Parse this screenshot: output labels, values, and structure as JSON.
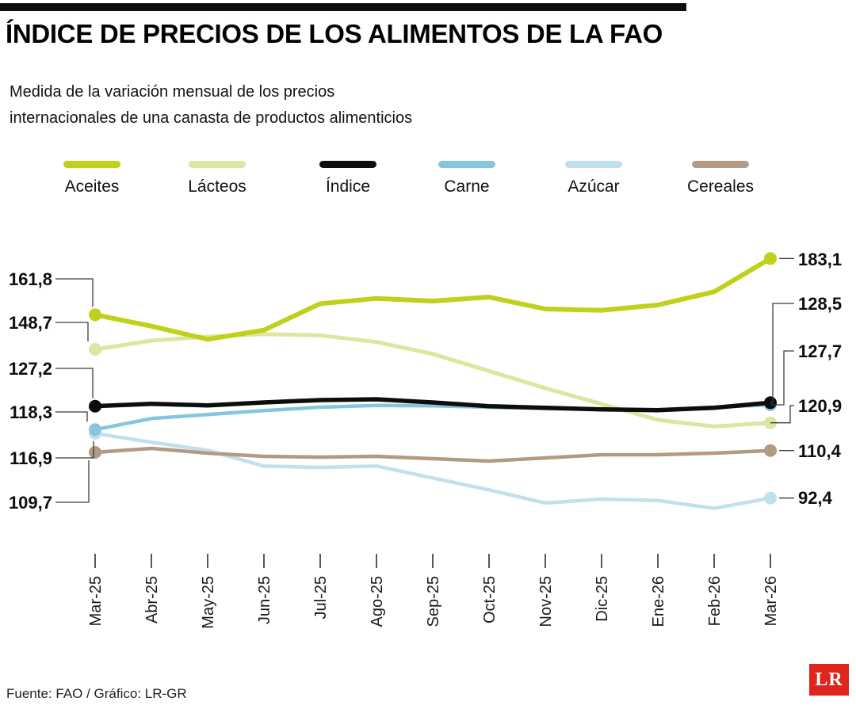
{
  "header": {
    "title": "ÍNDICE DE PRECIOS DE LOS ALIMENTOS DE LA FAO",
    "subtitle_line1": "Medida de la variación mensual de los precios",
    "subtitle_line2": "internacionales de una canasta de productos alimenticios"
  },
  "footer": {
    "source": "Fuente: FAO / Gráfico: LR-GR",
    "logo": "LR"
  },
  "colors": {
    "accent_bar": "#0d0d0d",
    "logo_red": "#e0251c"
  },
  "chart_data": {
    "type": "line",
    "title": "ÍNDICE DE PRECIOS DE LOS ALIMENTOS DE LA FAO",
    "xlabel": "",
    "ylabel": "",
    "ylim": [
      85,
      190
    ],
    "grid": false,
    "legend_position": "top",
    "categories": [
      "Mar-25",
      "Abr-25",
      "May-25",
      "Jun-25",
      "Jul-25",
      "Ago-25",
      "Sep-25",
      "Oct-25",
      "Nov-25",
      "Dic-25",
      "Ene-26",
      "Feb-26",
      "Mar-26"
    ],
    "series": [
      {
        "name": "Aceites",
        "color": "#bfd11a",
        "start_label": "161,8",
        "end_label": "183,1",
        "values": [
          161.8,
          157.5,
          152.5,
          156.0,
          166.0,
          168.0,
          167.0,
          168.5,
          164.0,
          163.5,
          165.5,
          170.5,
          183.1
        ]
      },
      {
        "name": "Lácteos",
        "color": "#dde5a0",
        "start_label": "148,7",
        "end_label": "120,9",
        "values": [
          148.7,
          152.0,
          153.5,
          154.5,
          154.0,
          151.5,
          147.0,
          140.5,
          134.0,
          128.0,
          122.0,
          119.5,
          120.9
        ]
      },
      {
        "name": "Índice",
        "color": "#0d0d0d",
        "start_label": "127,2",
        "end_label": "128,5",
        "values": [
          127.2,
          128.1,
          127.5,
          128.6,
          129.5,
          129.8,
          128.6,
          127.2,
          126.6,
          126.0,
          125.7,
          126.6,
          128.5
        ]
      },
      {
        "name": "Carne",
        "color": "#85c6de",
        "start_label": "118,3",
        "end_label": "127,7",
        "values": [
          118.3,
          122.5,
          124.0,
          125.5,
          126.8,
          127.5,
          127.3,
          126.8,
          126.3,
          126.0,
          125.8,
          126.8,
          127.7
        ]
      },
      {
        "name": "Azúcar",
        "color": "#c2dfee",
        "start_label": "116,9",
        "end_label": "92,4",
        "values": [
          116.9,
          113.5,
          110.5,
          104.5,
          104.0,
          104.5,
          100.0,
          95.5,
          90.5,
          92.0,
          91.5,
          88.5,
          92.4
        ]
      },
      {
        "name": "Cereales",
        "color": "#b29a84",
        "start_label": "109,7",
        "end_label": "110,4",
        "values": [
          109.7,
          111.2,
          109.4,
          108.2,
          107.9,
          108.2,
          107.3,
          106.4,
          107.6,
          108.8,
          108.8,
          109.4,
          110.4
        ]
      }
    ]
  }
}
